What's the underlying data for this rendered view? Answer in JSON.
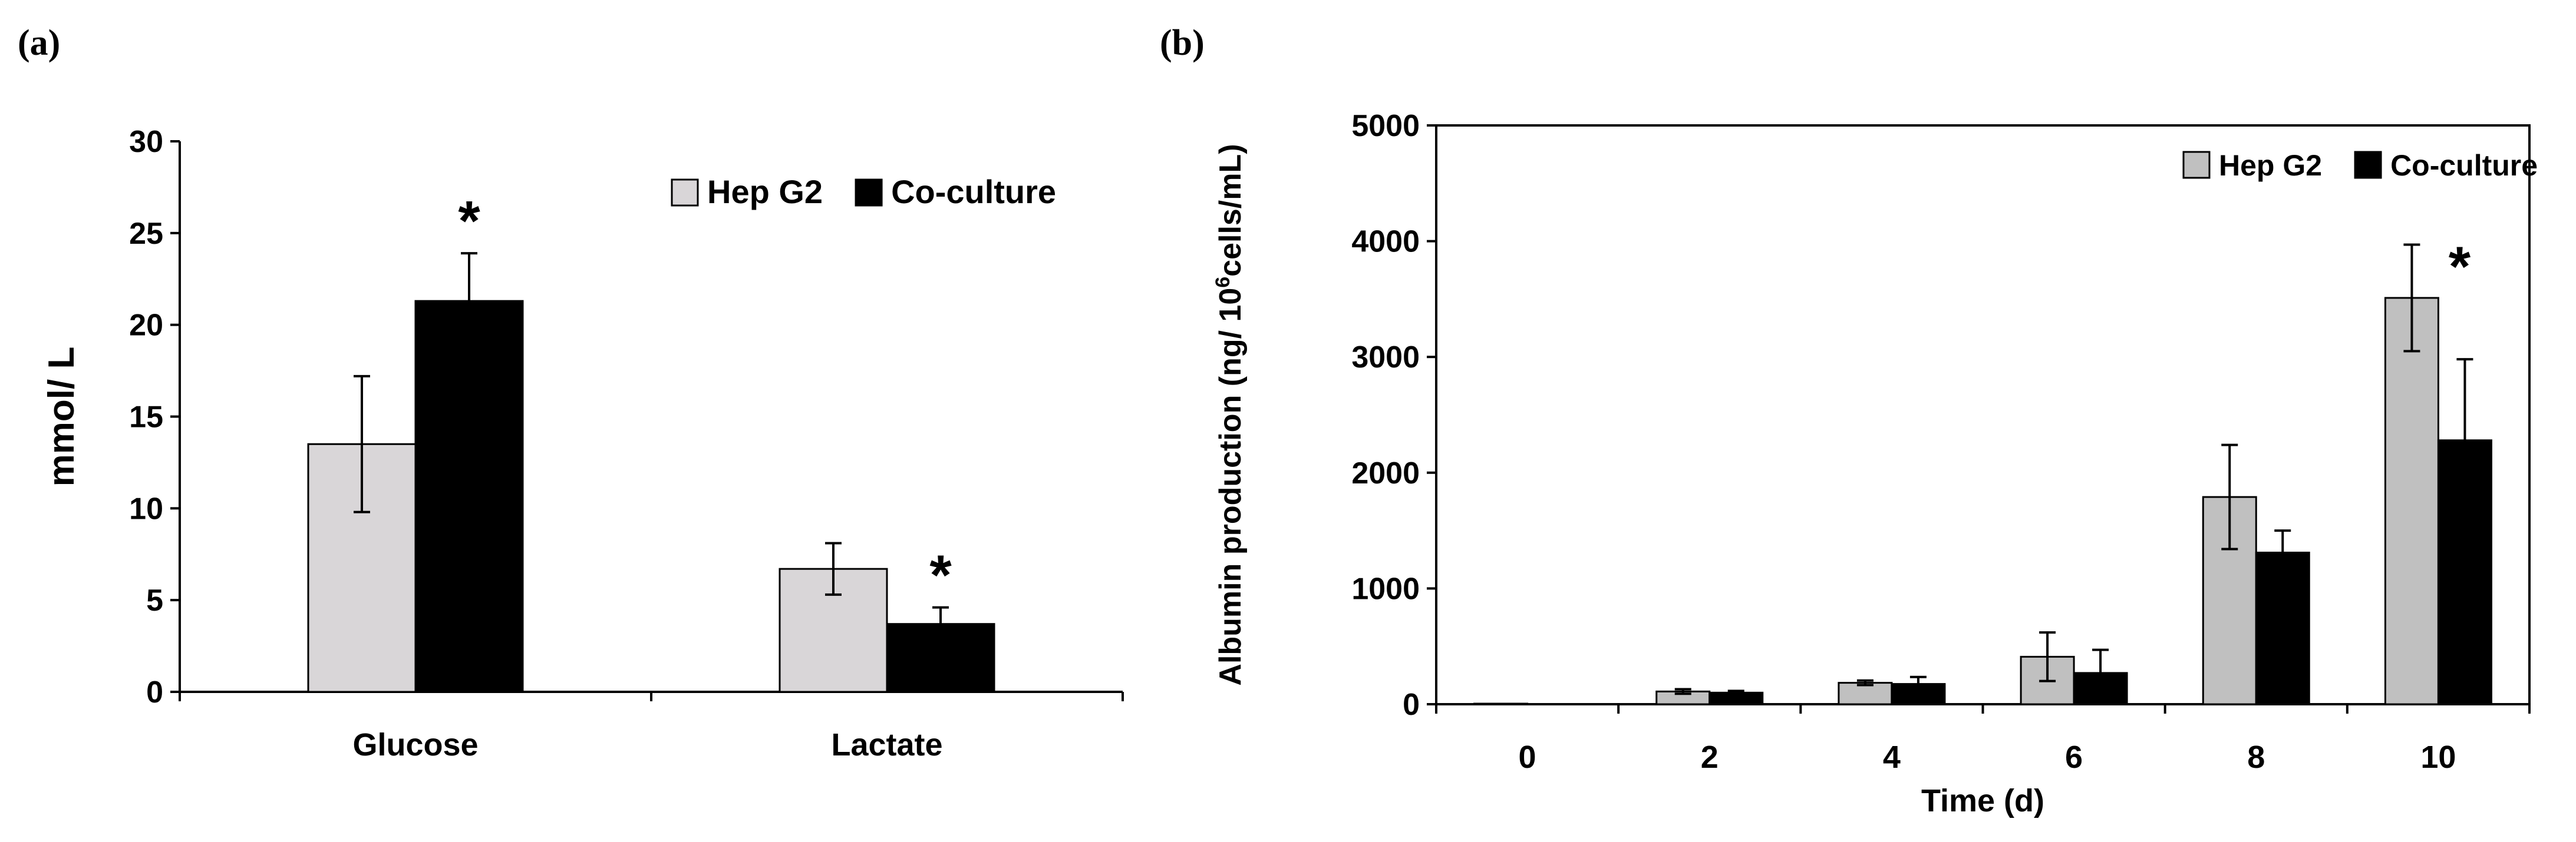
{
  "panels": [
    {
      "label": "(a)",
      "chart_data": {
        "type": "bar",
        "title": "",
        "xlabel": "",
        "ylabel": "mmol/ L",
        "categories": [
          "Glucose",
          "Lactate"
        ],
        "series": [
          {
            "name": "Hep G2",
            "color": "#d9d6d8",
            "values": [
              13.5,
              6.7
            ],
            "errors": [
              3.7,
              1.4
            ]
          },
          {
            "name": "Co-culture",
            "color": "#000000",
            "values": [
              21.3,
              3.7
            ],
            "errors": [
              2.6,
              0.9
            ]
          }
        ],
        "ylim": [
          0,
          30
        ],
        "yticks": [
          0,
          5,
          10,
          15,
          20,
          25,
          30
        ],
        "significance": [
          {
            "category": "Glucose",
            "series": "Co-culture",
            "text": "*"
          },
          {
            "category": "Lactate",
            "series": "Co-culture",
            "text": "*"
          }
        ],
        "legend_position": "top-right",
        "grid": false
      }
    },
    {
      "label": "(b)",
      "chart_data": {
        "type": "bar",
        "title": "",
        "xlabel": "Time (d)",
        "ylabel_parts": [
          "Albumin production (ng/ 10",
          "6",
          "cells/mL)"
        ],
        "categories": [
          "0",
          "2",
          "4",
          "6",
          "8",
          "10"
        ],
        "series": [
          {
            "name": "Hep G2",
            "color": "#c0c0c0",
            "values": [
              5,
              110,
              185,
              410,
              1790,
              3510
            ],
            "errors": [
              0,
              20,
              20,
              210,
              450,
              460
            ]
          },
          {
            "name": "Co-culture",
            "color": "#000000",
            "values": [
              0,
              100,
              175,
              270,
              1310,
              2280
            ],
            "errors": [
              0,
              15,
              60,
              200,
              190,
              700
            ]
          }
        ],
        "ylim": [
          0,
          5000
        ],
        "yticks": [
          0,
          1000,
          2000,
          3000,
          4000,
          5000
        ],
        "significance": [
          {
            "category": "10",
            "series": "Hep G2",
            "text": "*"
          }
        ],
        "legend_position": "top-right",
        "grid": false
      }
    }
  ]
}
